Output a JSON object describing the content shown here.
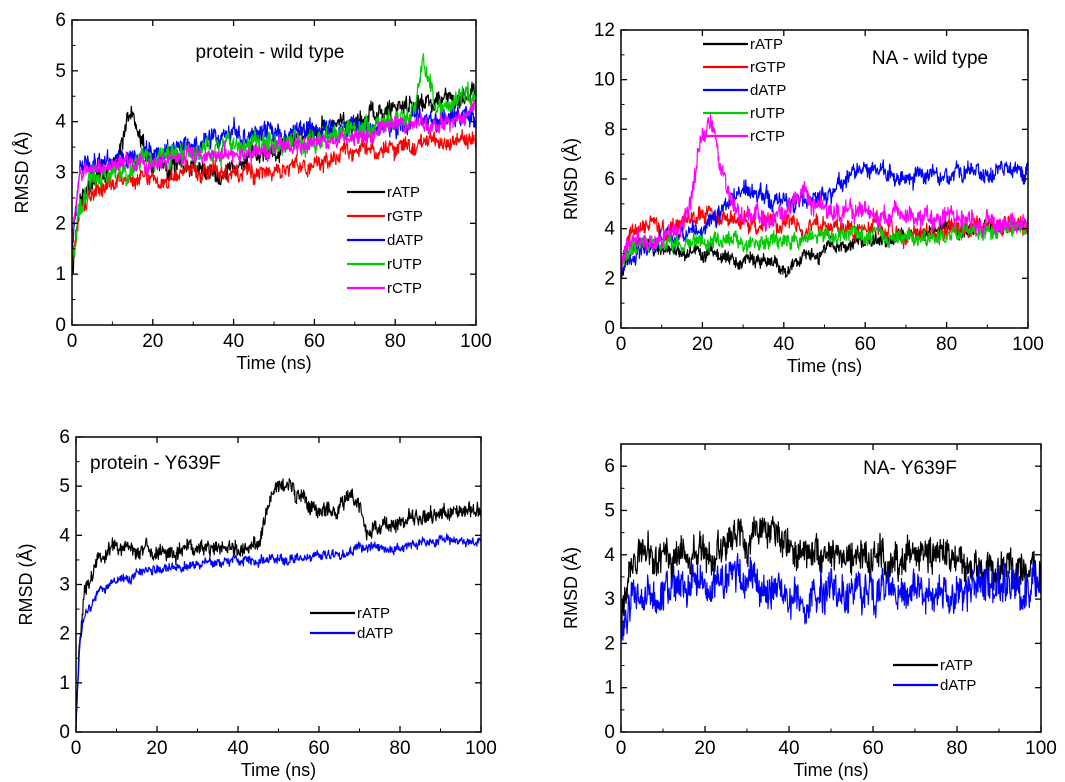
{
  "chart_data": [
    {
      "type": "line",
      "title": "protein - wild type",
      "xlabel": "Time (ns)",
      "ylabel": "RMSD (Å)",
      "xlim": [
        0,
        100
      ],
      "ylim": [
        0,
        6
      ],
      "xticks": [
        0,
        20,
        40,
        60,
        80,
        100
      ],
      "yticks": [
        0,
        1,
        2,
        3,
        4,
        5,
        6
      ],
      "legend_position": "center-right",
      "grid": false,
      "series": [
        {
          "name": "rATP",
          "color": "#000000",
          "x": [
            0,
            2,
            5,
            10,
            13,
            15,
            17,
            20,
            25,
            30,
            35,
            40,
            45,
            50,
            55,
            60,
            65,
            70,
            75,
            80,
            85,
            90,
            95,
            100
          ],
          "y": [
            1.0,
            2.5,
            2.8,
            3.1,
            3.8,
            4.2,
            3.6,
            3.2,
            3.1,
            3.1,
            3.0,
            3.1,
            3.3,
            3.5,
            3.7,
            3.9,
            3.9,
            4.0,
            4.1,
            4.3,
            4.4,
            4.4,
            4.5,
            4.6
          ],
          "noise": 0.25
        },
        {
          "name": "rGTP",
          "color": "#ff0000",
          "x": [
            0,
            2,
            5,
            10,
            20,
            30,
            40,
            50,
            60,
            70,
            80,
            90,
            100
          ],
          "y": [
            1.2,
            2.3,
            2.6,
            2.8,
            2.9,
            3.0,
            3.0,
            3.0,
            3.2,
            3.4,
            3.5,
            3.6,
            3.6
          ],
          "noise": 0.2
        },
        {
          "name": "dATP",
          "color": "#0000ff",
          "x": [
            0,
            2,
            5,
            10,
            20,
            30,
            40,
            50,
            60,
            70,
            80,
            90,
            100
          ],
          "y": [
            1.5,
            3.0,
            3.2,
            3.3,
            3.4,
            3.5,
            3.7,
            3.8,
            3.8,
            3.9,
            3.9,
            4.0,
            4.1
          ],
          "noise": 0.25
        },
        {
          "name": "rUTP",
          "color": "#00cc00",
          "x": [
            0,
            2,
            5,
            10,
            20,
            30,
            40,
            50,
            60,
            70,
            80,
            85,
            87,
            90,
            95,
            100
          ],
          "y": [
            1.3,
            2.5,
            2.9,
            3.0,
            3.2,
            3.4,
            3.5,
            3.6,
            3.6,
            3.8,
            4.0,
            4.3,
            5.3,
            4.2,
            4.4,
            4.6
          ],
          "noise": 0.28
        },
        {
          "name": "rCTP",
          "color": "#ff00ff",
          "x": [
            0,
            2,
            5,
            10,
            20,
            30,
            40,
            50,
            60,
            70,
            80,
            90,
            100
          ],
          "y": [
            1.8,
            2.9,
            3.1,
            3.2,
            3.2,
            3.3,
            3.4,
            3.5,
            3.6,
            3.7,
            3.9,
            4.0,
            4.2
          ],
          "noise": 0.2
        }
      ]
    },
    {
      "type": "line",
      "title": "NA - wild type",
      "xlabel": "Time (ns)",
      "ylabel": "RMSD (Å)",
      "xlim": [
        0,
        100
      ],
      "ylim": [
        0,
        12
      ],
      "xticks": [
        0,
        20,
        40,
        60,
        80,
        100
      ],
      "yticks": [
        0,
        2,
        4,
        6,
        8,
        10,
        12
      ],
      "legend_position": "top-left",
      "grid": false,
      "series": [
        {
          "name": "rATP",
          "color": "#000000",
          "x": [
            0,
            2,
            5,
            10,
            20,
            30,
            40,
            45,
            50,
            60,
            70,
            80,
            90,
            100
          ],
          "y": [
            2.0,
            3.2,
            3.4,
            3.1,
            3.0,
            2.7,
            2.5,
            2.8,
            3.2,
            3.5,
            3.7,
            3.9,
            4.0,
            4.2
          ],
          "noise": 0.35
        },
        {
          "name": "rGTP",
          "color": "#ff0000",
          "x": [
            0,
            2,
            5,
            10,
            20,
            30,
            40,
            50,
            60,
            70,
            80,
            90,
            100
          ],
          "y": [
            2.5,
            3.8,
            4.2,
            4.0,
            4.5,
            4.2,
            4.3,
            4.1,
            4.0,
            3.8,
            3.9,
            4.0,
            4.1
          ],
          "noise": 0.45
        },
        {
          "name": "dATP",
          "color": "#0000ff",
          "x": [
            0,
            2,
            5,
            10,
            20,
            25,
            30,
            40,
            50,
            55,
            60,
            70,
            80,
            90,
            100
          ],
          "y": [
            2.5,
            3.0,
            3.2,
            3.5,
            4.0,
            5.0,
            5.5,
            5.0,
            5.3,
            6.0,
            6.3,
            6.0,
            6.1,
            6.3,
            6.4
          ],
          "noise": 0.45
        },
        {
          "name": "rUTP",
          "color": "#00cc00",
          "x": [
            0,
            2,
            5,
            10,
            20,
            30,
            40,
            50,
            60,
            70,
            80,
            90,
            100
          ],
          "y": [
            2.5,
            3.0,
            3.5,
            3.4,
            3.6,
            3.5,
            3.5,
            3.8,
            3.7,
            3.6,
            3.8,
            4.0,
            4.1
          ],
          "noise": 0.4
        },
        {
          "name": "rCTP",
          "color": "#ff00ff",
          "x": [
            0,
            2,
            5,
            10,
            15,
            18,
            20,
            22,
            24,
            27,
            30,
            40,
            45,
            50,
            60,
            70,
            80,
            90,
            100
          ],
          "y": [
            2.5,
            3.5,
            3.5,
            3.6,
            4.0,
            6.0,
            7.8,
            8.2,
            7.0,
            5.0,
            4.3,
            4.6,
            5.5,
            4.8,
            4.6,
            4.5,
            4.4,
            4.3,
            4.2
          ],
          "noise": 0.5
        }
      ]
    },
    {
      "type": "line",
      "title": "protein - Y639F",
      "xlabel": "Time (ns)",
      "ylabel": "RMSD (Å)",
      "xlim": [
        0,
        100
      ],
      "ylim": [
        0,
        6
      ],
      "xticks": [
        0,
        20,
        40,
        60,
        80,
        100
      ],
      "yticks": [
        0,
        1,
        2,
        3,
        4,
        5,
        6
      ],
      "legend_position": "center-right",
      "grid": false,
      "series": [
        {
          "name": "rATP",
          "color": "#000000",
          "x": [
            0,
            1,
            2,
            5,
            10,
            20,
            30,
            40,
            45,
            48,
            50,
            53,
            57,
            60,
            65,
            68,
            72,
            80,
            90,
            100
          ],
          "y": [
            0.2,
            2.0,
            2.8,
            3.5,
            3.8,
            3.7,
            3.7,
            3.7,
            3.8,
            4.8,
            5.0,
            4.9,
            4.6,
            4.5,
            4.6,
            4.8,
            4.1,
            4.3,
            4.4,
            4.5
          ],
          "noise": 0.2
        },
        {
          "name": "dATP",
          "color": "#0000ff",
          "x": [
            0,
            1,
            2,
            5,
            10,
            20,
            30,
            40,
            50,
            60,
            70,
            80,
            90,
            100
          ],
          "y": [
            0.2,
            1.9,
            2.4,
            2.8,
            3.1,
            3.3,
            3.4,
            3.5,
            3.5,
            3.6,
            3.7,
            3.8,
            3.9,
            3.9
          ],
          "noise": 0.12
        }
      ]
    },
    {
      "type": "line",
      "title": "NA- Y639F",
      "xlabel": "Time (ns)",
      "ylabel": "RMSD (Å)",
      "xlim": [
        0,
        100
      ],
      "ylim": [
        0,
        6.5
      ],
      "xticks": [
        0,
        20,
        40,
        60,
        80,
        100
      ],
      "yticks": [
        0,
        1,
        2,
        3,
        4,
        5,
        6
      ],
      "legend_position": "bottom-right",
      "grid": false,
      "series": [
        {
          "name": "rATP",
          "color": "#000000",
          "x": [
            0,
            2,
            5,
            10,
            20,
            30,
            33,
            40,
            50,
            60,
            70,
            80,
            90,
            100
          ],
          "y": [
            2.5,
            3.7,
            4.0,
            4.0,
            4.1,
            4.3,
            4.8,
            4.2,
            4.0,
            3.9,
            3.9,
            3.8,
            3.7,
            3.7
          ],
          "noise": 0.5
        },
        {
          "name": "dATP",
          "color": "#0000ff",
          "x": [
            0,
            2,
            5,
            10,
            20,
            30,
            40,
            45,
            50,
            60,
            70,
            80,
            90,
            100
          ],
          "y": [
            2.0,
            3.0,
            3.1,
            3.2,
            3.3,
            3.5,
            2.9,
            3.0,
            3.2,
            3.2,
            3.1,
            3.2,
            3.2,
            3.2
          ],
          "noise": 0.55
        }
      ]
    }
  ]
}
